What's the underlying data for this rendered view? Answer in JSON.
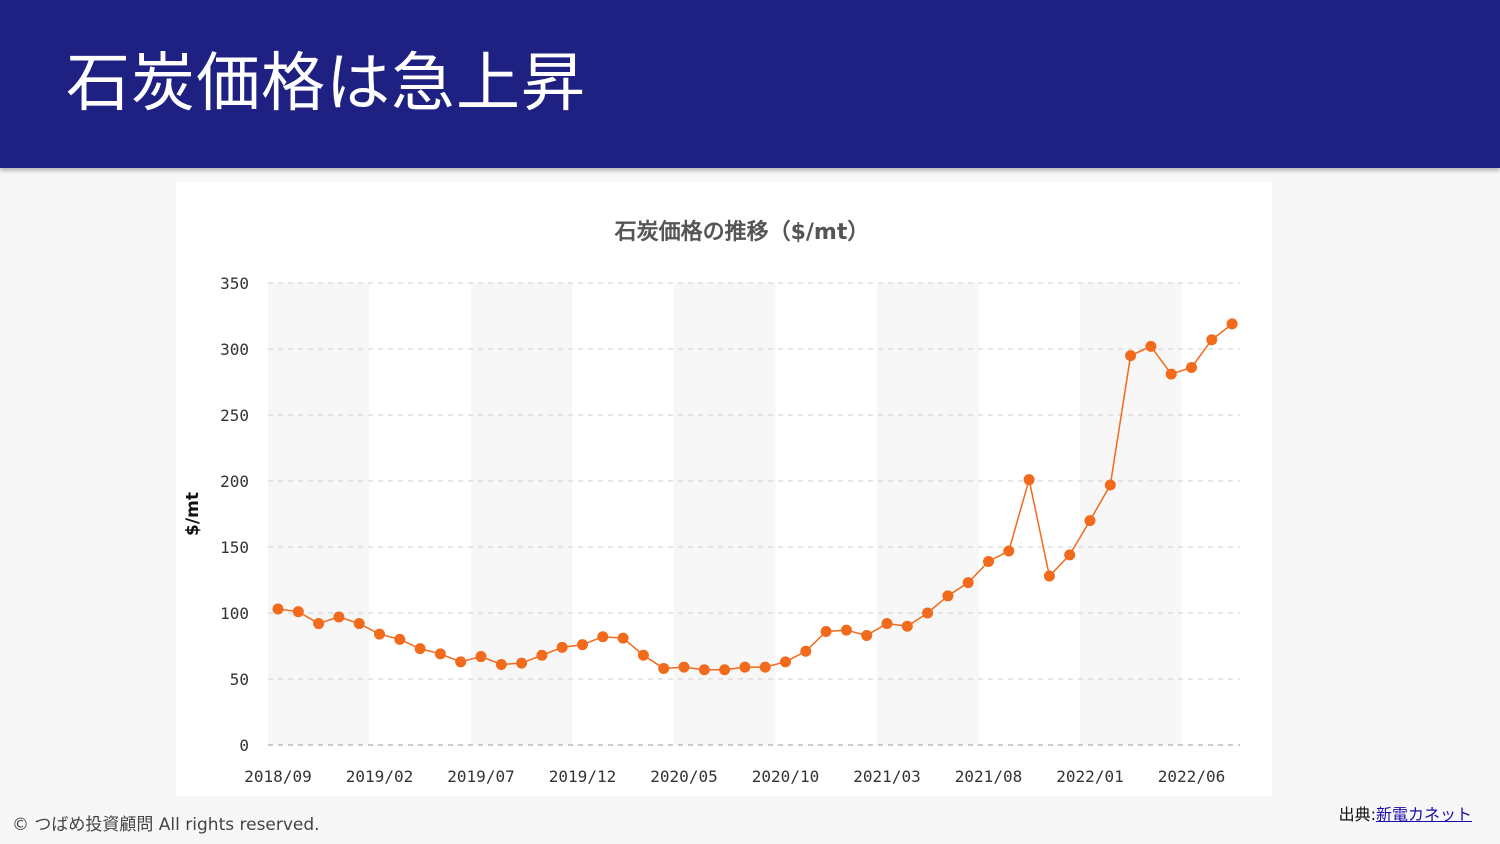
{
  "slide": {
    "title": "石炭価格は急上昇",
    "copyright": "© つばめ投資顧問 All rights reserved.",
    "source_label": "出典:",
    "source_link": "新電カネット"
  },
  "colors": {
    "header": "#1f2182",
    "series": "#f26a1b",
    "band": "#f7f7f7"
  },
  "chart_data": {
    "type": "line",
    "title": "石炭価格の推移（$/mt）",
    "ylabel": "$/mt",
    "xlabel": "",
    "ylim": [
      0,
      350
    ],
    "yticks": [
      0,
      50,
      100,
      150,
      200,
      250,
      300,
      350
    ],
    "grid": true,
    "x_tick_labels": [
      "2018/09",
      "2019/02",
      "2019/07",
      "2019/12",
      "2020/05",
      "2020/10",
      "2021/03",
      "2021/08",
      "2022/01",
      "2022/06"
    ],
    "x": [
      "2018/09",
      "2018/10",
      "2018/11",
      "2018/12",
      "2019/01",
      "2019/02",
      "2019/03",
      "2019/04",
      "2019/05",
      "2019/06",
      "2019/07",
      "2019/08",
      "2019/09",
      "2019/10",
      "2019/11",
      "2019/12",
      "2020/01",
      "2020/02",
      "2020/03",
      "2020/04",
      "2020/05",
      "2020/06",
      "2020/07",
      "2020/08",
      "2020/09",
      "2020/10",
      "2020/11",
      "2020/12",
      "2021/01",
      "2021/02",
      "2021/03",
      "2021/04",
      "2021/05",
      "2021/06",
      "2021/07",
      "2021/08",
      "2021/09",
      "2021/10",
      "2021/11",
      "2021/12",
      "2022/01",
      "2022/02",
      "2022/03",
      "2022/04",
      "2022/05",
      "2022/06",
      "2022/07",
      "2022/08"
    ],
    "series": [
      {
        "values": [
          103,
          101,
          92,
          97,
          92,
          84,
          80,
          73,
          69,
          63,
          67,
          61,
          62,
          68,
          74,
          76,
          82,
          81,
          68,
          58,
          59,
          57,
          57,
          59,
          59,
          63,
          71,
          86,
          87,
          83,
          92,
          90,
          100,
          113,
          123,
          139,
          147,
          201,
          128,
          144,
          170,
          197,
          295,
          302,
          281,
          286,
          307,
          319
        ]
      }
    ]
  }
}
